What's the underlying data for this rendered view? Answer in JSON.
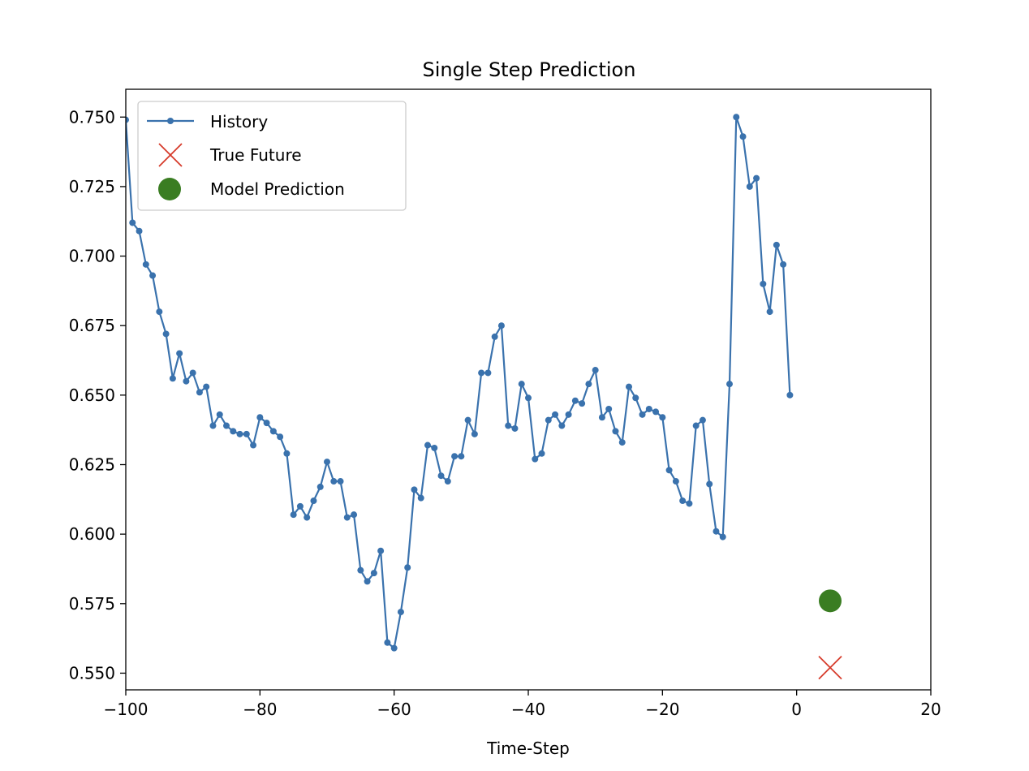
{
  "chart_data": {
    "type": "line",
    "title": "Single Step Prediction",
    "xlabel": "Time-Step",
    "ylabel": "",
    "xlim": [
      -100,
      20
    ],
    "ylim": [
      0.544,
      0.76
    ],
    "xticks": [
      -100,
      -80,
      -60,
      -40,
      -20,
      0,
      20
    ],
    "xtick_labels": [
      "−100",
      "−80",
      "−60",
      "−40",
      "−20",
      "0",
      "20"
    ],
    "yticks": [
      0.55,
      0.575,
      0.6,
      0.625,
      0.65,
      0.675,
      0.7,
      0.725,
      0.75
    ],
    "ytick_labels": [
      "0.550",
      "0.575",
      "0.600",
      "0.625",
      "0.650",
      "0.675",
      "0.700",
      "0.725",
      "0.750"
    ],
    "grid": false,
    "legend_position": "top-left",
    "legend": [
      {
        "name": "History",
        "marker": "line-dot"
      },
      {
        "name": "True Future",
        "marker": "x"
      },
      {
        "name": "Model Prediction",
        "marker": "circle"
      }
    ],
    "colors": {
      "history": "#3a72ad",
      "true_future": "#d63a2a",
      "prediction": "#3a7d22"
    },
    "series": [
      {
        "name": "History",
        "x": [
          -100,
          -99,
          -98,
          -97,
          -96,
          -95,
          -94,
          -93,
          -92,
          -91,
          -90,
          -89,
          -88,
          -87,
          -86,
          -85,
          -84,
          -83,
          -82,
          -81,
          -80,
          -79,
          -78,
          -77,
          -76,
          -75,
          -74,
          -73,
          -72,
          -71,
          -70,
          -69,
          -68,
          -67,
          -66,
          -65,
          -64,
          -63,
          -62,
          -61,
          -60,
          -59,
          -58,
          -57,
          -56,
          -55,
          -54,
          -53,
          -52,
          -51,
          -50,
          -49,
          -48,
          -47,
          -46,
          -45,
          -44,
          -43,
          -42,
          -41,
          -40,
          -39,
          -38,
          -37,
          -36,
          -35,
          -34,
          -33,
          -32,
          -31,
          -30,
          -29,
          -28,
          -27,
          -26,
          -25,
          -24,
          -23,
          -22,
          -21,
          -20,
          -19,
          -18,
          -17,
          -16,
          -15,
          -14,
          -13,
          -12,
          -11,
          -10,
          -9,
          -8,
          -7,
          -6,
          -5,
          -4,
          -3,
          -2,
          -1
        ],
        "values": [
          0.749,
          0.712,
          0.709,
          0.697,
          0.693,
          0.68,
          0.672,
          0.656,
          0.665,
          0.655,
          0.658,
          0.651,
          0.653,
          0.639,
          0.643,
          0.639,
          0.637,
          0.636,
          0.636,
          0.632,
          0.642,
          0.64,
          0.637,
          0.635,
          0.629,
          0.607,
          0.61,
          0.606,
          0.612,
          0.617,
          0.626,
          0.619,
          0.619,
          0.606,
          0.607,
          0.587,
          0.583,
          0.586,
          0.594,
          0.561,
          0.559,
          0.572,
          0.588,
          0.616,
          0.613,
          0.632,
          0.631,
          0.621,
          0.619,
          0.628,
          0.628,
          0.641,
          0.636,
          0.658,
          0.658,
          0.671,
          0.675,
          0.639,
          0.638,
          0.654,
          0.649,
          0.627,
          0.629,
          0.641,
          0.643,
          0.639,
          0.643,
          0.648,
          0.647,
          0.654,
          0.659,
          0.642,
          0.645,
          0.637,
          0.633,
          0.653,
          0.649,
          0.643,
          0.645,
          0.644,
          0.642,
          0.623,
          0.619,
          0.612,
          0.611,
          0.639,
          0.641,
          0.618,
          0.601,
          0.599,
          0.654,
          0.75,
          0.743,
          0.725,
          0.728,
          0.69,
          0.68,
          0.704,
          0.697,
          0.65
        ]
      },
      {
        "name": "True Future",
        "x": [
          5
        ],
        "values": [
          0.552
        ]
      },
      {
        "name": "Model Prediction",
        "x": [
          5
        ],
        "values": [
          0.576
        ]
      }
    ]
  }
}
